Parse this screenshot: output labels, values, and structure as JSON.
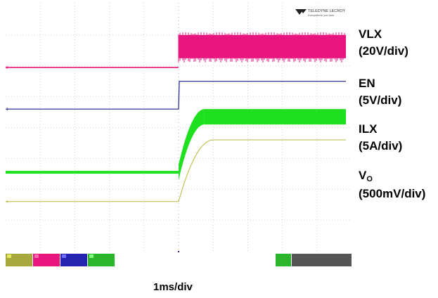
{
  "chart_data": {
    "type": "line",
    "title": "",
    "xlabel": "1ms/div",
    "ylabel": "",
    "x_divisions": 10,
    "y_divisions": 8,
    "trigger_division": 5,
    "series": [
      {
        "name": "VLX",
        "scale": "(20V/div)",
        "color": "#e8157f",
        "kind": "switching",
        "baseline_div": 5.95,
        "high_div": 7.0,
        "low_div": 6.25,
        "start_div": 5.0
      },
      {
        "name": "EN",
        "scale": "(5V/div)",
        "color": "#1c1c8c",
        "kind": "step",
        "baseline_div": 4.6,
        "high_div": 5.5,
        "start_div": 5.0
      },
      {
        "name": "ILX",
        "scale": "(5A/div)",
        "color": "#1fe01f",
        "kind": "ramp_ripple",
        "baseline_div": 2.55,
        "high_div": 4.35,
        "ripple_div": 0.5,
        "start_div": 5.0,
        "end_div": 5.75
      },
      {
        "name": "V",
        "name_sub": "O",
        "scale": "(500mV/div)",
        "color": "#b7b83a",
        "kind": "ramp",
        "baseline_div": 1.6,
        "high_div": 3.6,
        "start_div": 5.0,
        "end_div": 6.0
      }
    ]
  },
  "logo_text": "TELEDYNE LECROY",
  "logo_subtext": "Everywhere you look",
  "channel_markers": [
    "2",
    "1",
    "3",
    "4"
  ]
}
